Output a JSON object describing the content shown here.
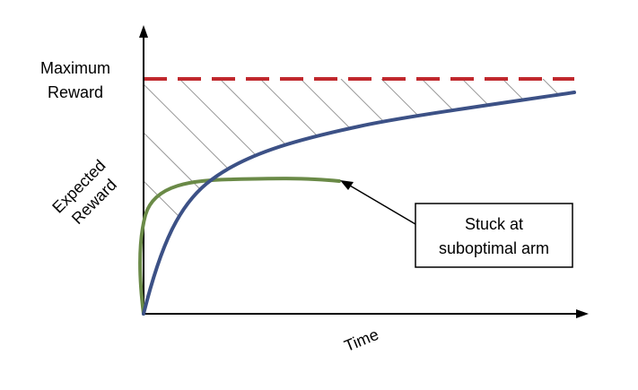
{
  "labels": {
    "max_reward_line1": "Maximum",
    "max_reward_line2": "Reward",
    "expected_reward_line1": "Expected",
    "expected_reward_line2": "Reward",
    "time": "Time",
    "callout_line1": "Stuck at",
    "callout_line2": "suboptimal arm"
  },
  "colors": {
    "max_reward_line": "#c0282d",
    "optimal_curve": "#3c5186",
    "suboptimal_curve": "#6a8a47",
    "axes": "#000000",
    "hatch": "#9a9a9a"
  }
}
